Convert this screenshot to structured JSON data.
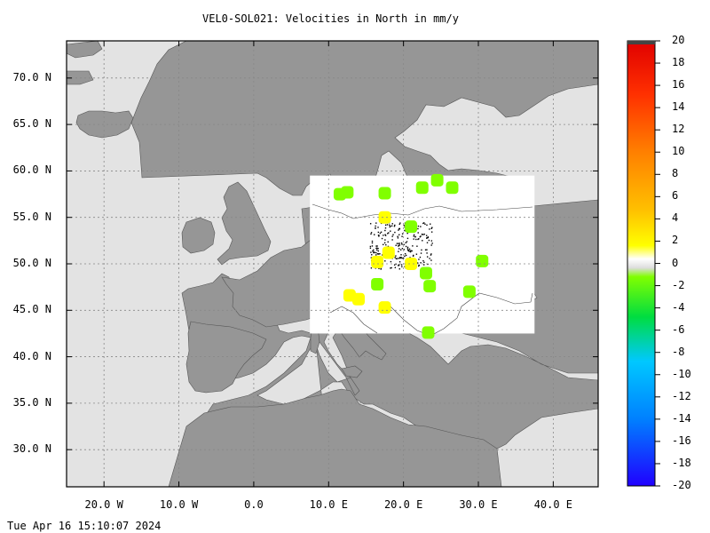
{
  "title": "VEL0-SOL021: Velocities in North in mm/y",
  "timestamp": "Tue Apr 16 15:10:07 2024",
  "map": {
    "lon_range": [
      -25,
      46
    ],
    "lat_range": [
      26,
      74
    ],
    "lat_ticks": [
      {
        "value": 70,
        "label": "70.0 N"
      },
      {
        "value": 65,
        "label": "65.0 N"
      },
      {
        "value": 60,
        "label": "60.0 N"
      },
      {
        "value": 55,
        "label": "55.0 N"
      },
      {
        "value": 50,
        "label": "50.0 N"
      },
      {
        "value": 45,
        "label": "45.0 N"
      },
      {
        "value": 40,
        "label": "40.0 N"
      },
      {
        "value": 35,
        "label": "35.0 N"
      },
      {
        "value": 30,
        "label": "30.0 N"
      }
    ],
    "lon_ticks": [
      {
        "value": -20,
        "label": "20.0 W"
      },
      {
        "value": -10,
        "label": "10.0 W"
      },
      {
        "value": 0,
        "label": "0.0"
      },
      {
        "value": 10,
        "label": "10.0 E"
      },
      {
        "value": 20,
        "label": "20.0 E"
      },
      {
        "value": 30,
        "label": "30.0 E"
      },
      {
        "value": 40,
        "label": "40.0 E"
      }
    ],
    "grid": true,
    "colors": {
      "sea": "#e3e3e3",
      "land": "#969696",
      "data_region": "#ffffff"
    },
    "data_region": {
      "lon_min": 7.5,
      "lon_max": 37.5,
      "lat_min": 42.5,
      "lat_max": 59.5
    },
    "points": [
      {
        "lon": 11.5,
        "lat": 57.5,
        "v": -1
      },
      {
        "lon": 12.5,
        "lat": 57.7,
        "v": -1
      },
      {
        "lon": 17.5,
        "lat": 57.6,
        "v": -1
      },
      {
        "lon": 22.5,
        "lat": 58.2,
        "v": -1
      },
      {
        "lon": 24.5,
        "lat": 59.0,
        "v": -1
      },
      {
        "lon": 26.5,
        "lat": 58.2,
        "v": -1
      },
      {
        "lon": 17.5,
        "lat": 55.0,
        "v": 1
      },
      {
        "lon": 21.0,
        "lat": 54.0,
        "v": -1
      },
      {
        "lon": 18.0,
        "lat": 51.2,
        "v": 2
      },
      {
        "lon": 16.5,
        "lat": 50.2,
        "v": 2
      },
      {
        "lon": 21.0,
        "lat": 50.0,
        "v": 2
      },
      {
        "lon": 23.0,
        "lat": 49.0,
        "v": -1
      },
      {
        "lon": 30.5,
        "lat": 50.3,
        "v": -1
      },
      {
        "lon": 16.5,
        "lat": 47.8,
        "v": -1
      },
      {
        "lon": 23.5,
        "lat": 47.6,
        "v": -1
      },
      {
        "lon": 28.8,
        "lat": 47.0,
        "v": -1
      },
      {
        "lon": 12.8,
        "lat": 46.6,
        "v": 2
      },
      {
        "lon": 14.0,
        "lat": 46.2,
        "v": 2
      },
      {
        "lon": 17.5,
        "lat": 45.3,
        "v": 2
      },
      {
        "lon": 23.3,
        "lat": 42.6,
        "v": -1
      }
    ]
  },
  "colorbar": {
    "vmin": -20,
    "vmax": 20,
    "labels": [
      "20",
      "18",
      "16",
      "14",
      "12",
      "10",
      "8",
      "6",
      "4",
      "2",
      "0",
      "-2",
      "-4",
      "-6",
      "-8",
      "-10",
      "-12",
      "-14",
      "-16",
      "-18",
      "-20"
    ],
    "stops": [
      "#ff0000",
      "#ff3300",
      "#ff8000",
      "#ffc000",
      "#ffff00",
      "#ffffff",
      "#80ff00",
      "#00dd40",
      "#00c8ff",
      "#0080ff",
      "#2000ff"
    ]
  }
}
